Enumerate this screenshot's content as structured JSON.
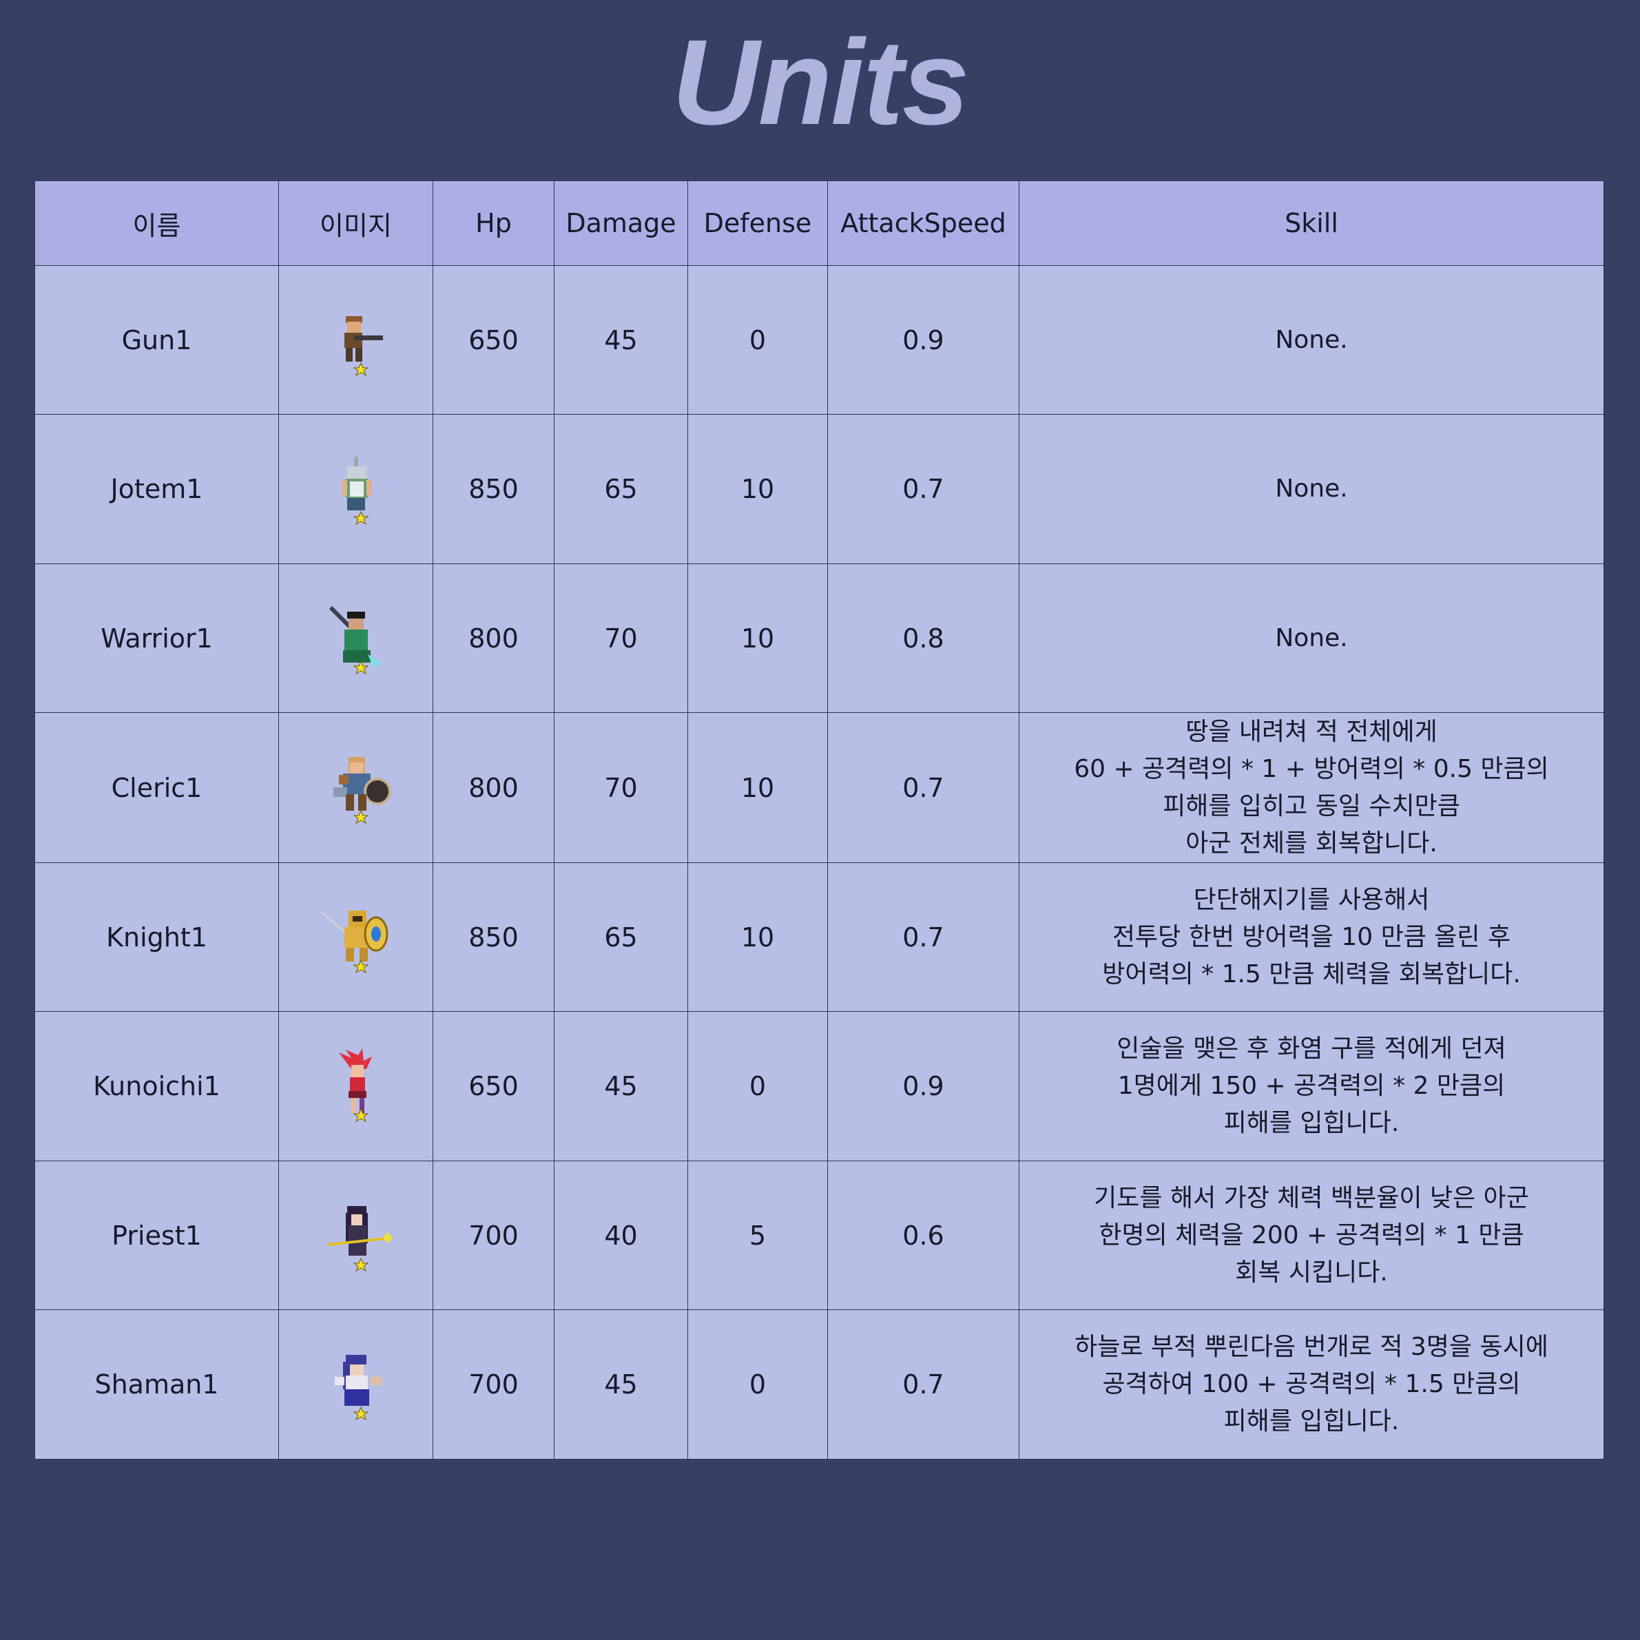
{
  "title": "Units",
  "columns": [
    "이름",
    "이미지",
    "Hp",
    "Damage",
    "Defense",
    "AttackSpeed",
    "Skill"
  ],
  "units": [
    {
      "name": "Gun1",
      "image": "gunner-sprite-icon",
      "hp": "650",
      "damage": "45",
      "defense": "0",
      "attack_speed": "0.9",
      "skill": [
        "None."
      ]
    },
    {
      "name": "Jotem1",
      "image": "jotem-sprite-icon",
      "hp": "850",
      "damage": "65",
      "defense": "10",
      "attack_speed": "0.7",
      "skill": [
        "None."
      ]
    },
    {
      "name": "Warrior1",
      "image": "warrior-sprite-icon",
      "hp": "800",
      "damage": "70",
      "defense": "10",
      "attack_speed": "0.8",
      "skill": [
        "None."
      ]
    },
    {
      "name": "Cleric1",
      "image": "cleric-sprite-icon",
      "hp": "800",
      "damage": "70",
      "defense": "10",
      "attack_speed": "0.7",
      "skill": [
        "땅을 내려쳐 적 전체에게",
        "60 + 공격력의 * 1 + 방어력의 * 0.5 만큼의",
        "피해를 입히고 동일 수치만큼",
        "아군 전체를 회복합니다."
      ]
    },
    {
      "name": "Knight1",
      "image": "knight-sprite-icon",
      "hp": "850",
      "damage": "65",
      "defense": "10",
      "attack_speed": "0.7",
      "skill": [
        "단단해지기를 사용해서",
        "전투당 한번 방어력을 10 만큼 올린 후",
        "방어력의 * 1.5 만큼 체력을 회복합니다."
      ]
    },
    {
      "name": "Kunoichi1",
      "image": "kunoichi-sprite-icon",
      "hp": "650",
      "damage": "45",
      "defense": "0",
      "attack_speed": "0.9",
      "skill": [
        "인술을 맺은 후 화염 구를 적에게 던져",
        "1명에게 150 + 공격력의 * 2 만큼의",
        "피해를 입힙니다."
      ]
    },
    {
      "name": "Priest1",
      "image": "priest-sprite-icon",
      "hp": "700",
      "damage": "40",
      "defense": "5",
      "attack_speed": "0.6",
      "skill": [
        "기도를 해서 가장 체력 백분율이 낮은 아군",
        "한명의 체력을 200 + 공격력의 * 1 만큼",
        "회복 시킵니다."
      ]
    },
    {
      "name": "Shaman1",
      "image": "shaman-sprite-icon",
      "hp": "700",
      "damage": "45",
      "defense": "0",
      "attack_speed": "0.7",
      "skill": [
        "하늘로 부적 뿌린다음 번개로 적 3명을 동시에",
        "공격하여 100 + 공격력의 * 1.5 만큼의",
        "피해를 입힙니다."
      ]
    }
  ],
  "colors": {
    "background": "#373f63",
    "title": "#aeb4de",
    "header_bg": "#aeaee6",
    "cell_bg": "#b8bfe6",
    "border": "#2f3550",
    "star": "#f5e12a"
  }
}
